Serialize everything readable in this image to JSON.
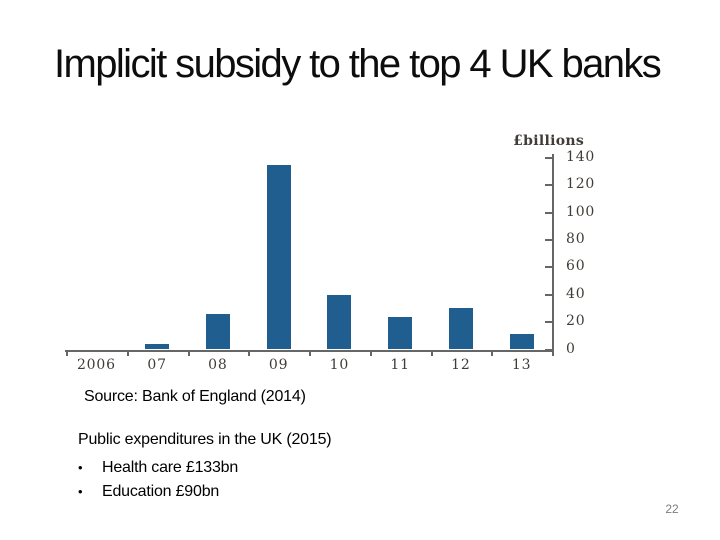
{
  "slide": {
    "title": "Implicit subsidy to the top 4 UK banks",
    "source_note": "Source: Bank of England (2014)",
    "page_number": "22"
  },
  "expenditures": {
    "heading": "Public expenditures in the UK (2015)",
    "bullet_glyph": "•",
    "items": [
      "Health care £133bn",
      "Education £90bn"
    ]
  },
  "chart_data": {
    "type": "bar",
    "title": "",
    "xlabel": "",
    "ylabel": "£billions",
    "categories": [
      "2006",
      "07",
      "08",
      "09",
      "10",
      "11",
      "12",
      "13"
    ],
    "values": [
      0,
      4,
      26,
      135,
      40,
      24,
      30,
      11
    ],
    "ylim": [
      0,
      140
    ],
    "ytick_step": 20,
    "yticks": [
      0,
      20,
      40,
      60,
      80,
      100,
      120,
      140
    ],
    "grid": false,
    "legend": false,
    "y_axis_position": "right",
    "bar_color": "#1f5e8f",
    "axis_color": "#666666",
    "tick_label_color": "#403c36"
  }
}
